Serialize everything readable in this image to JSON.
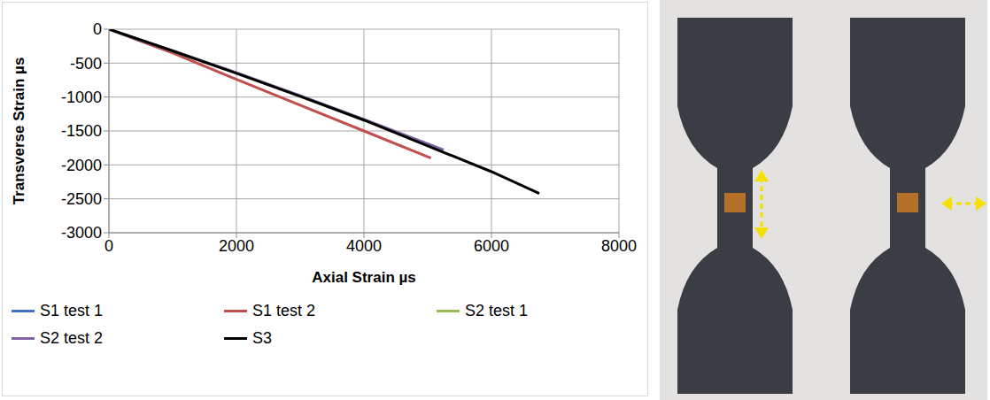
{
  "chart_data": {
    "type": "line",
    "x_label": "Axial Strain µs",
    "y_label": "Transverse Strain µs",
    "xlim": [
      0,
      8000
    ],
    "ylim": [
      -3000,
      0
    ],
    "xticks": [
      0,
      2000,
      4000,
      6000,
      8000
    ],
    "yticks": [
      -3000,
      -2500,
      -2000,
      -1500,
      -1000,
      -500,
      0
    ],
    "grid": true,
    "legend": "bottom",
    "series": [
      {
        "name": "S1 test 1",
        "color": "#4472c4",
        "x": [
          0,
          400,
          800
        ],
        "values": [
          0,
          -140,
          -280
        ]
      },
      {
        "name": "S1 test 2",
        "color": "#c0504d",
        "x": [
          0,
          1000,
          2000,
          3000,
          4000,
          5050
        ],
        "values": [
          0,
          -350,
          -740,
          -1120,
          -1500,
          -1900
        ]
      },
      {
        "name": "S2 test 1",
        "color": "#9bbb59",
        "x": [
          0,
          1000,
          2000,
          3000,
          4000,
          5200
        ],
        "values": [
          0,
          -320,
          -645,
          -985,
          -1335,
          -1770
        ]
      },
      {
        "name": "S2 test 2",
        "color": "#8064a2",
        "x": [
          0,
          1000,
          2000,
          3000,
          4000,
          5250
        ],
        "values": [
          0,
          -320,
          -640,
          -980,
          -1330,
          -1780
        ]
      },
      {
        "name": "S3",
        "color": "#000000",
        "x": [
          0,
          1000,
          2000,
          3000,
          4000,
          5000,
          6000,
          6750
        ],
        "values": [
          0,
          -320,
          -650,
          -990,
          -1340,
          -1720,
          -2100,
          -2420
        ]
      }
    ]
  }
}
